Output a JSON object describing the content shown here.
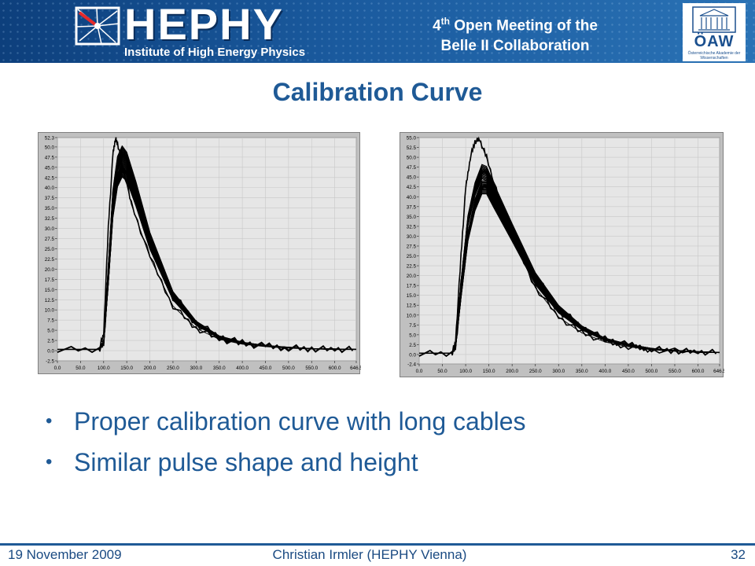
{
  "header": {
    "logo_text": "HEPHY",
    "logo_subtitle": "Institute of High Energy Physics",
    "meeting_line1_prefix": "4",
    "meeting_line1_sup": "th",
    "meeting_line1_rest": " Open Meeting of the",
    "meeting_line2": "Belle II Collaboration",
    "academy_logo": "ÖAW",
    "academy_name": "Österreichische Akademie der Wissenschaften"
  },
  "slide": {
    "title": "Calibration Curve",
    "bullets": [
      "Proper calibration curve with long cables",
      "Similar pulse shape and height"
    ]
  },
  "footer": {
    "date": "19 November 2009",
    "author": "Christian Irmler (HEPHY Vienna)",
    "page": "32"
  },
  "colors": {
    "header_blue": "#1a5a9e",
    "title_blue": "#1f5a96",
    "plot_background": "#e6e6e6",
    "trace": "#000000"
  },
  "chart_data": [
    {
      "type": "line",
      "ylim": [
        -2.5,
        52.3
      ],
      "xlim": [
        0,
        646.5
      ],
      "yticks": [
        "52.3",
        "50.0",
        "47.5",
        "45.0",
        "42.5",
        "40.0",
        "37.5",
        "35.0",
        "32.5",
        "30.0",
        "27.5",
        "25.0",
        "22.5",
        "20.0",
        "17.5",
        "15.0",
        "12.5",
        "10.0",
        "7.5",
        "5.0",
        "2.5",
        "0.0",
        "-2.5"
      ],
      "xticks": [
        "0.0",
        "50.0",
        "100.0",
        "150.0",
        "200.0",
        "250.0",
        "300.0",
        "350.0",
        "400.0",
        "450.0",
        "500.0",
        "550.0",
        "600.0",
        "646.5"
      ],
      "grid": true,
      "series": [
        {
          "x": [
            0,
            90,
            100,
            110,
            120,
            130,
            140,
            150,
            170,
            200,
            250,
            300,
            350,
            400,
            450,
            500,
            550,
            600,
            646.5
          ],
          "y": [
            0.3,
            0.3,
            2,
            20,
            38,
            46,
            48.5,
            47,
            40,
            28,
            14,
            7,
            3.5,
            2,
            1.2,
            0.8,
            0.5,
            0.4,
            0.3
          ]
        },
        {
          "x": [
            0,
            90,
            100,
            110,
            120,
            130,
            140,
            150,
            170,
            200,
            250,
            300,
            350,
            400,
            450,
            500,
            550,
            600,
            646.5
          ],
          "y": [
            0.3,
            0.3,
            1.5,
            17,
            34,
            42,
            44.5,
            43.5,
            37,
            26,
            13,
            6.5,
            3.2,
            1.8,
            1.1,
            0.7,
            0.5,
            0.3,
            0.3
          ]
        },
        {
          "x": [
            0,
            90,
            100,
            110,
            120,
            125,
            130,
            140,
            160,
            200,
            250,
            300,
            350,
            400,
            450,
            500,
            550,
            600,
            646.5
          ],
          "y": [
            0.3,
            0.3,
            4,
            30,
            48,
            52,
            51,
            46,
            36,
            23,
            11,
            5.5,
            2.8,
            1.6,
            1,
            0.6,
            0.4,
            0.3,
            0.3
          ]
        }
      ]
    },
    {
      "type": "line",
      "ylim": [
        -2.4,
        55.0
      ],
      "xlim": [
        0,
        646.5
      ],
      "yticks": [
        "55.0",
        "52.5",
        "50.0",
        "47.5",
        "45.0",
        "42.5",
        "40.0",
        "37.5",
        "35.0",
        "32.5",
        "30.0",
        "27.5",
        "25.0",
        "22.5",
        "20.0",
        "17.5",
        "15.0",
        "12.5",
        "10.0",
        "7.5",
        "5.0",
        "2.5",
        "0.0",
        "-2.4"
      ],
      "xticks": [
        "0.0",
        "50.0",
        "100.0",
        "150.0",
        "200.0",
        "250.0",
        "300.0",
        "350.0",
        "400.0",
        "450.0",
        "500.0",
        "550.0",
        "600.0",
        "646.5"
      ],
      "grid": true,
      "series": [
        {
          "x": [
            0,
            70,
            78,
            90,
            105,
            120,
            135,
            145,
            160,
            200,
            250,
            300,
            350,
            400,
            450,
            500,
            550,
            600,
            646.5
          ],
          "y": [
            0.3,
            0.3,
            2,
            18,
            34,
            42,
            46.5,
            46,
            42,
            32,
            20,
            12,
            7,
            4,
            2.5,
            1.5,
            1,
            0.7,
            0.5
          ]
        },
        {
          "x": [
            0,
            70,
            78,
            90,
            105,
            120,
            135,
            145,
            160,
            200,
            250,
            300,
            350,
            400,
            450,
            500,
            550,
            600,
            646.5
          ],
          "y": [
            0.3,
            0.3,
            1.5,
            15,
            30,
            38,
            42.5,
            42.5,
            39,
            30,
            18.5,
            11,
            6.5,
            3.7,
            2.3,
            1.4,
            0.9,
            0.6,
            0.5
          ]
        },
        {
          "x": [
            0,
            70,
            78,
            90,
            100,
            110,
            120,
            130,
            145,
            170,
            200,
            250,
            300,
            350,
            400,
            450,
            500,
            600,
            646.5
          ],
          "y": [
            0.3,
            0.3,
            3,
            25,
            42,
            50,
            54,
            54.5,
            50,
            40,
            30,
            17,
            9.5,
            5.5,
            3.2,
            2,
            1.2,
            0.6,
            0.5
          ]
        }
      ]
    }
  ]
}
